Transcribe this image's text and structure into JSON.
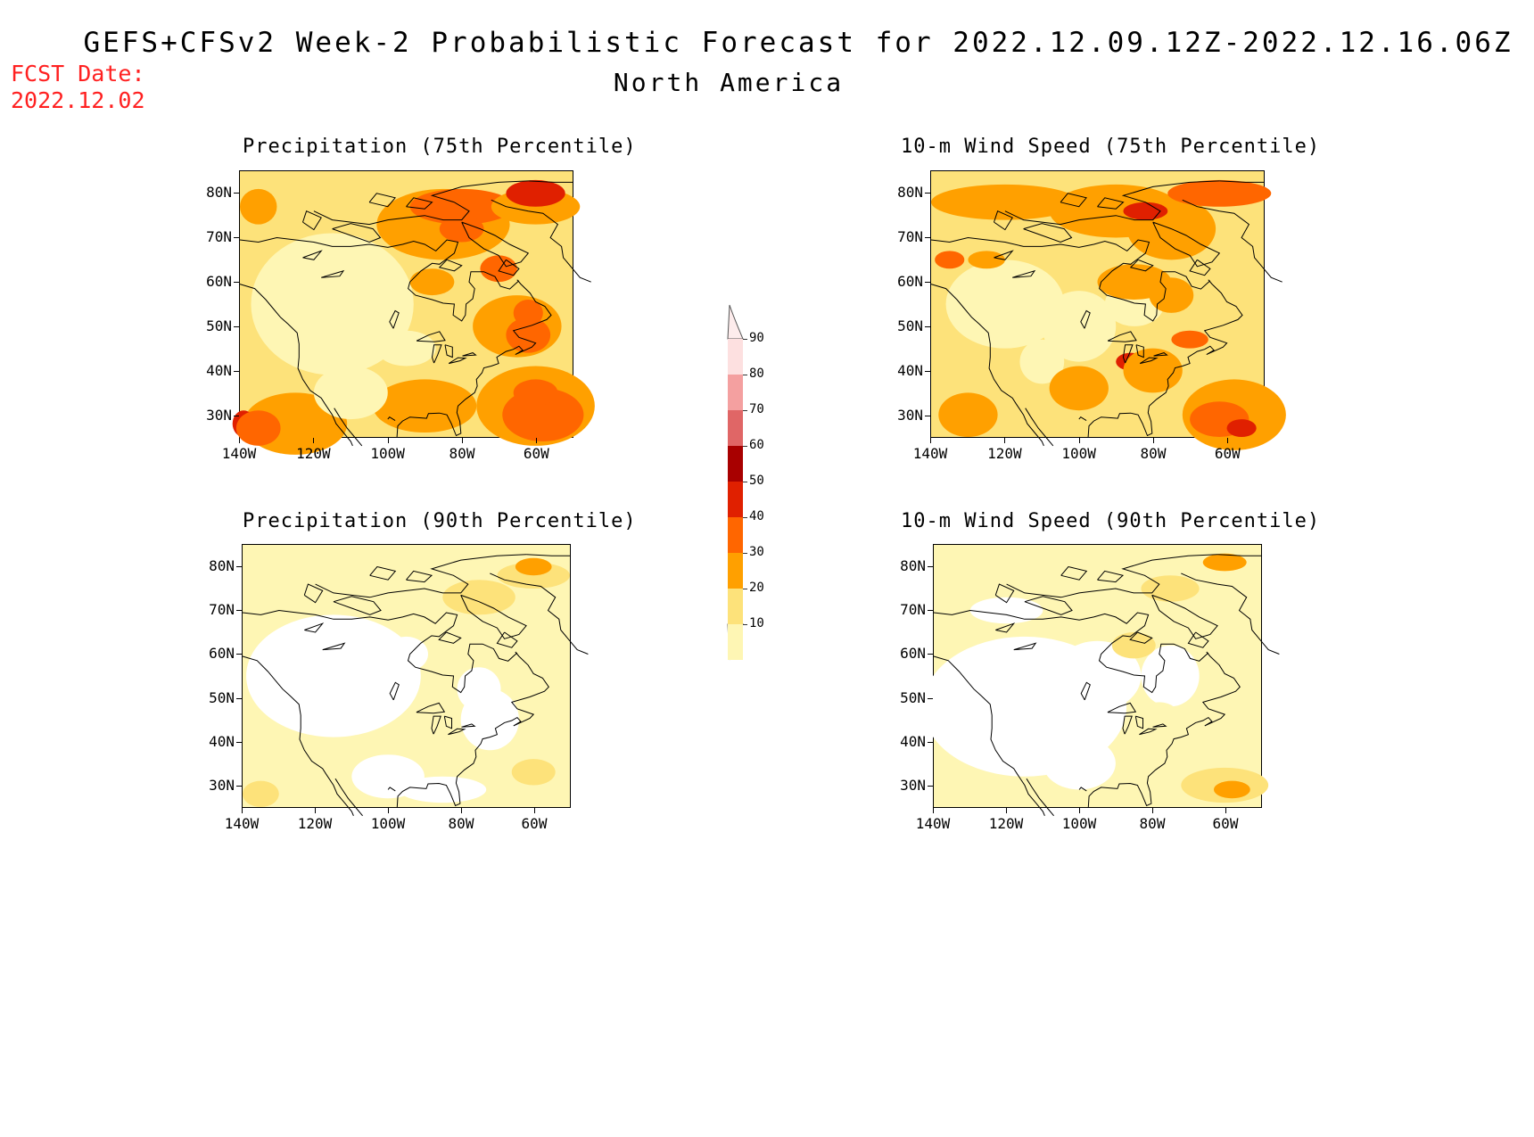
{
  "header": {
    "title": "GEFS+CFSv2 Week-2 Probabilistic Forecast for 2022.12.09.12Z-2022.12.16.06Z",
    "subtitle": "North America",
    "fcst_label": "FCST Date:",
    "fcst_date": "2022.12.02"
  },
  "axes": {
    "lat_ticks": [
      "80N",
      "70N",
      "60N",
      "50N",
      "40N",
      "30N"
    ],
    "lon_ticks": [
      "140W",
      "120W",
      "100W",
      "80W",
      "60W"
    ]
  },
  "panels": [
    {
      "title": "Precipitation (75th Percentile)",
      "level": "high"
    },
    {
      "title": "10-m Wind Speed (75th Percentile)",
      "level": "high"
    },
    {
      "title": "Precipitation (90th Percentile)",
      "level": "low"
    },
    {
      "title": "10-m Wind Speed (90th Percentile)",
      "level": "low"
    }
  ],
  "colorbar": {
    "labels": [
      "90",
      "80",
      "70",
      "60",
      "50",
      "40",
      "30",
      "20",
      "10"
    ],
    "colors": [
      "#fde0e0",
      "#f4a0a0",
      "#e06666",
      "#a80000",
      "#e02000",
      "#ff6600",
      "#ffa000",
      "#fde27a",
      "#fef6b4"
    ]
  }
}
